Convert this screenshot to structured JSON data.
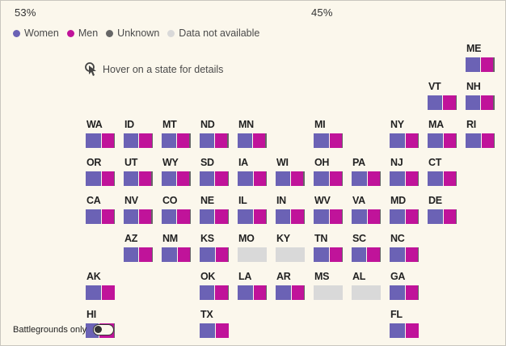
{
  "header": {
    "left_pct": "53%",
    "right_pct": "45%"
  },
  "legend": [
    {
      "label": "Women",
      "color": "#6b62b5"
    },
    {
      "label": "Men",
      "color": "#c0139a"
    },
    {
      "label": "Unknown",
      "color": "#666666"
    },
    {
      "label": "Data not available",
      "color": "#d9d9d9"
    }
  ],
  "hint": {
    "icon": "pointer-hand-icon",
    "text": "Hover on a state for details"
  },
  "colors": {
    "women": "#6b62b5",
    "men": "#c0139a",
    "unknown": "#666666",
    "na": "#d9d9d9"
  },
  "states": [
    {
      "abbr": "ME",
      "col": 10,
      "row": 0,
      "women": 0.5,
      "men": 0.45,
      "unknown": 0.05
    },
    {
      "abbr": "VT",
      "col": 9,
      "row": 1,
      "women": 0.5,
      "men": 0.47,
      "unknown": 0.03
    },
    {
      "abbr": "NH",
      "col": 10,
      "row": 1,
      "women": 0.5,
      "men": 0.45,
      "unknown": 0.05
    },
    {
      "abbr": "WA",
      "col": 0,
      "row": 2,
      "women": 0.53,
      "men": 0.43,
      "unknown": 0.04
    },
    {
      "abbr": "ID",
      "col": 1,
      "row": 2,
      "women": 0.5,
      "men": 0.47,
      "unknown": 0.03
    },
    {
      "abbr": "MT",
      "col": 2,
      "row": 2,
      "women": 0.5,
      "men": 0.45,
      "unknown": 0.05
    },
    {
      "abbr": "ND",
      "col": 3,
      "row": 2,
      "women": 0.5,
      "men": 0.45,
      "unknown": 0.05
    },
    {
      "abbr": "MN",
      "col": 4,
      "row": 2,
      "women": 0.5,
      "men": 0.45,
      "unknown": 0.05
    },
    {
      "abbr": "MI",
      "col": 6,
      "row": 2,
      "women": 0.53,
      "men": 0.45,
      "unknown": 0.02
    },
    {
      "abbr": "NY",
      "col": 8,
      "row": 2,
      "women": 0.53,
      "men": 0.44,
      "unknown": 0.03
    },
    {
      "abbr": "MA",
      "col": 9,
      "row": 2,
      "women": 0.53,
      "men": 0.43,
      "unknown": 0.04
    },
    {
      "abbr": "RI",
      "col": 10,
      "row": 2,
      "women": 0.53,
      "men": 0.45,
      "unknown": 0.02
    },
    {
      "abbr": "OR",
      "col": 0,
      "row": 3,
      "women": 0.53,
      "men": 0.43,
      "unknown": 0.04
    },
    {
      "abbr": "UT",
      "col": 1,
      "row": 3,
      "women": 0.5,
      "men": 0.45,
      "unknown": 0.05
    },
    {
      "abbr": "WY",
      "col": 2,
      "row": 3,
      "women": 0.5,
      "men": 0.45,
      "unknown": 0.05
    },
    {
      "abbr": "SD",
      "col": 3,
      "row": 3,
      "women": 0.5,
      "men": 0.47,
      "unknown": 0.03
    },
    {
      "abbr": "IA",
      "col": 4,
      "row": 3,
      "women": 0.53,
      "men": 0.44,
      "unknown": 0.03
    },
    {
      "abbr": "WI",
      "col": 5,
      "row": 3,
      "women": 0.5,
      "men": 0.45,
      "unknown": 0.05
    },
    {
      "abbr": "OH",
      "col": 6,
      "row": 3,
      "women": 0.53,
      "men": 0.44,
      "unknown": 0.03
    },
    {
      "abbr": "PA",
      "col": 7,
      "row": 3,
      "women": 0.53,
      "men": 0.44,
      "unknown": 0.03
    },
    {
      "abbr": "NJ",
      "col": 8,
      "row": 3,
      "women": 0.53,
      "men": 0.44,
      "unknown": 0.03
    },
    {
      "abbr": "CT",
      "col": 9,
      "row": 3,
      "women": 0.53,
      "men": 0.44,
      "unknown": 0.03
    },
    {
      "abbr": "CA",
      "col": 0,
      "row": 4,
      "women": 0.53,
      "men": 0.43,
      "unknown": 0.04
    },
    {
      "abbr": "NV",
      "col": 1,
      "row": 4,
      "women": 0.5,
      "men": 0.45,
      "unknown": 0.05
    },
    {
      "abbr": "CO",
      "col": 2,
      "row": 4,
      "women": 0.5,
      "men": 0.47,
      "unknown": 0.03
    },
    {
      "abbr": "NE",
      "col": 3,
      "row": 4,
      "women": 0.5,
      "men": 0.47,
      "unknown": 0.03
    },
    {
      "abbr": "IL",
      "col": 4,
      "row": 4,
      "women": 0.53,
      "men": 0.44,
      "unknown": 0.03
    },
    {
      "abbr": "IN",
      "col": 5,
      "row": 4,
      "women": 0.5,
      "men": 0.47,
      "unknown": 0.03
    },
    {
      "abbr": "WV",
      "col": 6,
      "row": 4,
      "women": 0.53,
      "men": 0.44,
      "unknown": 0.03
    },
    {
      "abbr": "VA",
      "col": 7,
      "row": 4,
      "women": 0.53,
      "men": 0.44,
      "unknown": 0.03
    },
    {
      "abbr": "MD",
      "col": 8,
      "row": 4,
      "women": 0.53,
      "men": 0.44,
      "unknown": 0.03
    },
    {
      "abbr": "DE",
      "col": 9,
      "row": 4,
      "women": 0.53,
      "men": 0.43,
      "unknown": 0.04
    },
    {
      "abbr": "AZ",
      "col": 1,
      "row": 5,
      "women": 0.5,
      "men": 0.47,
      "unknown": 0.03
    },
    {
      "abbr": "NM",
      "col": 2,
      "row": 5,
      "women": 0.53,
      "men": 0.44,
      "unknown": 0.03
    },
    {
      "abbr": "KS",
      "col": 3,
      "row": 5,
      "women": 0.53,
      "men": 0.44,
      "unknown": 0.03
    },
    {
      "abbr": "MO",
      "col": 4,
      "row": 5,
      "na": true
    },
    {
      "abbr": "KY",
      "col": 5,
      "row": 5,
      "na": true
    },
    {
      "abbr": "TN",
      "col": 6,
      "row": 5,
      "women": 0.53,
      "men": 0.44,
      "unknown": 0.03
    },
    {
      "abbr": "SC",
      "col": 7,
      "row": 5,
      "women": 0.5,
      "men": 0.47,
      "unknown": 0.03
    },
    {
      "abbr": "NC",
      "col": 8,
      "row": 5,
      "women": 0.53,
      "men": 0.44,
      "unknown": 0.03
    },
    {
      "abbr": "AK",
      "col": 0,
      "row": 6,
      "women": 0.53,
      "men": 0.47,
      "unknown": 0.0
    },
    {
      "abbr": "OK",
      "col": 3,
      "row": 6,
      "women": 0.5,
      "men": 0.47,
      "unknown": 0.03
    },
    {
      "abbr": "LA",
      "col": 4,
      "row": 6,
      "women": 0.53,
      "men": 0.44,
      "unknown": 0.03
    },
    {
      "abbr": "AR",
      "col": 5,
      "row": 6,
      "women": 0.53,
      "men": 0.44,
      "unknown": 0.03
    },
    {
      "abbr": "MS",
      "col": 6,
      "row": 6,
      "na": true
    },
    {
      "abbr": "AL",
      "col": 7,
      "row": 6,
      "na": true
    },
    {
      "abbr": "GA",
      "col": 8,
      "row": 6,
      "women": 0.53,
      "men": 0.44,
      "unknown": 0.03
    },
    {
      "abbr": "HI",
      "col": 0,
      "row": 7,
      "women": 0.47,
      "men": 0.5,
      "unknown": 0.03
    },
    {
      "abbr": "TX",
      "col": 3,
      "row": 7,
      "women": 0.53,
      "men": 0.47,
      "unknown": 0.0
    },
    {
      "abbr": "FL",
      "col": 8,
      "row": 7,
      "women": 0.53,
      "men": 0.47,
      "unknown": 0.0
    }
  ],
  "battleground_toggle": {
    "label": "Battlegrounds only",
    "on": false
  }
}
